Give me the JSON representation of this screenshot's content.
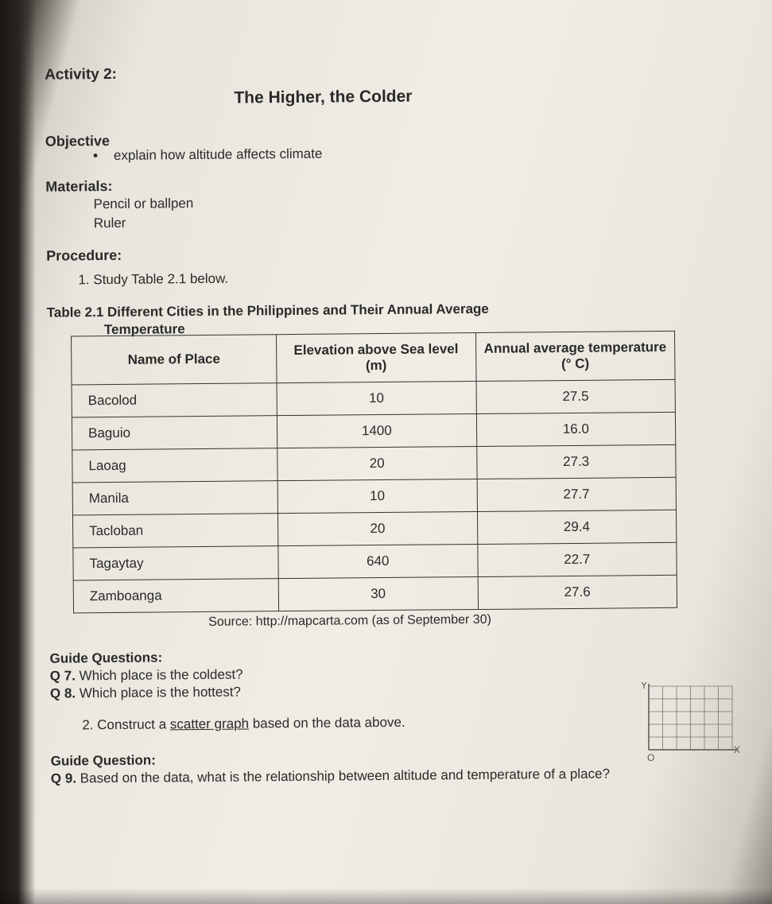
{
  "activity_label": "Activity 2:",
  "title": "The Higher, the Colder",
  "objective": {
    "head": "Objective",
    "text": "explain how altitude affects climate"
  },
  "materials": {
    "head": "Materials:",
    "items": [
      "Pencil or ballpen",
      "Ruler"
    ]
  },
  "procedure": {
    "head": "Procedure:",
    "step1": "1. Study Table 2.1 below."
  },
  "table": {
    "caption_line1": "Table 2.1 Different Cities in the Philippines and Their Annual Average",
    "caption_line2": "Temperature",
    "columns": [
      "Name of Place",
      "Elevation above Sea level (m)",
      "Annual average temperature (° C)"
    ],
    "col_widths": [
      "34%",
      "33%",
      "33%"
    ],
    "rows": [
      [
        "Bacolod",
        "10",
        "27.5"
      ],
      [
        "Baguio",
        "1400",
        "16.0"
      ],
      [
        "Laoag",
        "20",
        "27.3"
      ],
      [
        "Manila",
        "10",
        "27.7"
      ],
      [
        "Tacloban",
        "20",
        "29.4"
      ],
      [
        "Tagaytay",
        "640",
        "22.7"
      ],
      [
        "Zamboanga",
        "30",
        "27.6"
      ]
    ],
    "source": "Source: http://mapcarta.com (as of September 30)"
  },
  "guide1": {
    "head": "Guide Questions:",
    "q7_b": "Q 7.",
    "q7": " Which place is the coldest?",
    "q8_b": "Q 8.",
    "q8": " Which place is the hottest?"
  },
  "step2_pre": "2. Construct a ",
  "step2_u": "scatter graph",
  "step2_post": " based on the data above.",
  "guide2": {
    "head": "Guide Question:",
    "q9_b": "Q 9.",
    "q9": " Based on the data, what is the relationship between altitude and temperature of a place?"
  },
  "sketch": {
    "grid_color": "#7a746a",
    "axis_color": "#555",
    "rows": 5,
    "cols": 6,
    "y_label": "Y",
    "x_label": "X",
    "origin_label": "O"
  }
}
